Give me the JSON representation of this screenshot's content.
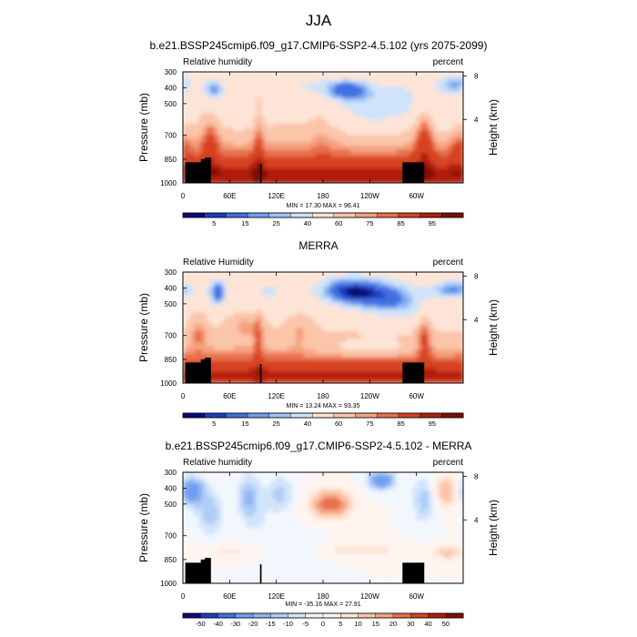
{
  "figure": {
    "title": "JJA",
    "colors": {
      "rh_scale": [
        "#0a0a7e",
        "#1e3cc0",
        "#3f6fe0",
        "#6f9df0",
        "#9fc3f5",
        "#cfe3fa",
        "#fde4d6",
        "#fbc5aa",
        "#f5a17f",
        "#e8704c",
        "#d64221",
        "#b11f0c",
        "#800e05"
      ],
      "diff_scale": [
        "#0a0a7e",
        "#1e3cc0",
        "#3f6fe0",
        "#6f9df0",
        "#8fb5f2",
        "#afcdf7",
        "#d2e4fb",
        "#f2f7fe",
        "#fff5f0",
        "#fde4d6",
        "#fbc5aa",
        "#f5a17f",
        "#e8704c",
        "#d64221",
        "#b11f0c",
        "#800e05"
      ],
      "terrain": "#000000"
    }
  },
  "chart_data": [
    {
      "type": "heatmap",
      "title": "b.e21.BSSP245cmip6.f09_g17.CMIP6-SSP2-4.5.102 (yrs 2075-2099)",
      "left_label": "Relative humidity",
      "right_label": "percent",
      "xlabel": "",
      "ylabel": "Pressure (mb)",
      "y2label": "Height (km)",
      "x_ticks": [
        "0",
        "60E",
        "120E",
        "180",
        "120W",
        "60W"
      ],
      "x_range": [
        0,
        360
      ],
      "y_ticks": [
        "300",
        "400",
        "500",
        "700",
        "850",
        "1000"
      ],
      "y_range": [
        300,
        1000
      ],
      "y2_ticks": [
        "8",
        "4"
      ],
      "stats": "MIN = 17.30  MAX = 96.41",
      "min": 17.3,
      "max": 96.41,
      "colorbar_labels": [
        "5",
        "15",
        "25",
        "40",
        "60",
        "75",
        "85",
        "95"
      ]
    },
    {
      "type": "heatmap",
      "title": "MERRA",
      "left_label": "Relative Humidity",
      "right_label": "percent",
      "xlabel": "",
      "ylabel": "Pressure (mb)",
      "y2label": "Height (km)",
      "x_ticks": [
        "0",
        "60E",
        "120E",
        "180",
        "120W",
        "60W"
      ],
      "x_range": [
        0,
        360
      ],
      "y_ticks": [
        "300",
        "400",
        "500",
        "700",
        "850",
        "1000"
      ],
      "y_range": [
        300,
        1000
      ],
      "y2_ticks": [
        "8",
        "4"
      ],
      "stats": "MIN = 13.24  MAX = 93.35",
      "min": 13.24,
      "max": 93.35,
      "colorbar_labels": [
        "5",
        "15",
        "25",
        "40",
        "60",
        "75",
        "85",
        "95"
      ]
    },
    {
      "type": "heatmap",
      "title": "b.e21.BSSP245cmip6.f09_g17.CMIP6-SSP2-4.5.102 - MERRA",
      "left_label": "Relative humidity",
      "right_label": "percent",
      "xlabel": "",
      "ylabel": "Pressure (mb)",
      "y2label": "Height (km)",
      "x_ticks": [
        "0",
        "60E",
        "120E",
        "180",
        "120W",
        "60W"
      ],
      "x_range": [
        0,
        360
      ],
      "y_ticks": [
        "300",
        "400",
        "500",
        "700",
        "850",
        "1000"
      ],
      "y_range": [
        300,
        1000
      ],
      "y2_ticks": [
        "8",
        "4"
      ],
      "stats": "MIN = -35.16  MAX = 27.91",
      "min": -35.16,
      "max": 27.91,
      "colorbar_labels": [
        "-50",
        "-40",
        "-30",
        "-20",
        "-15",
        "-10",
        "-5",
        "0",
        "5",
        "10",
        "15",
        "20",
        "30",
        "40",
        "50"
      ]
    }
  ]
}
